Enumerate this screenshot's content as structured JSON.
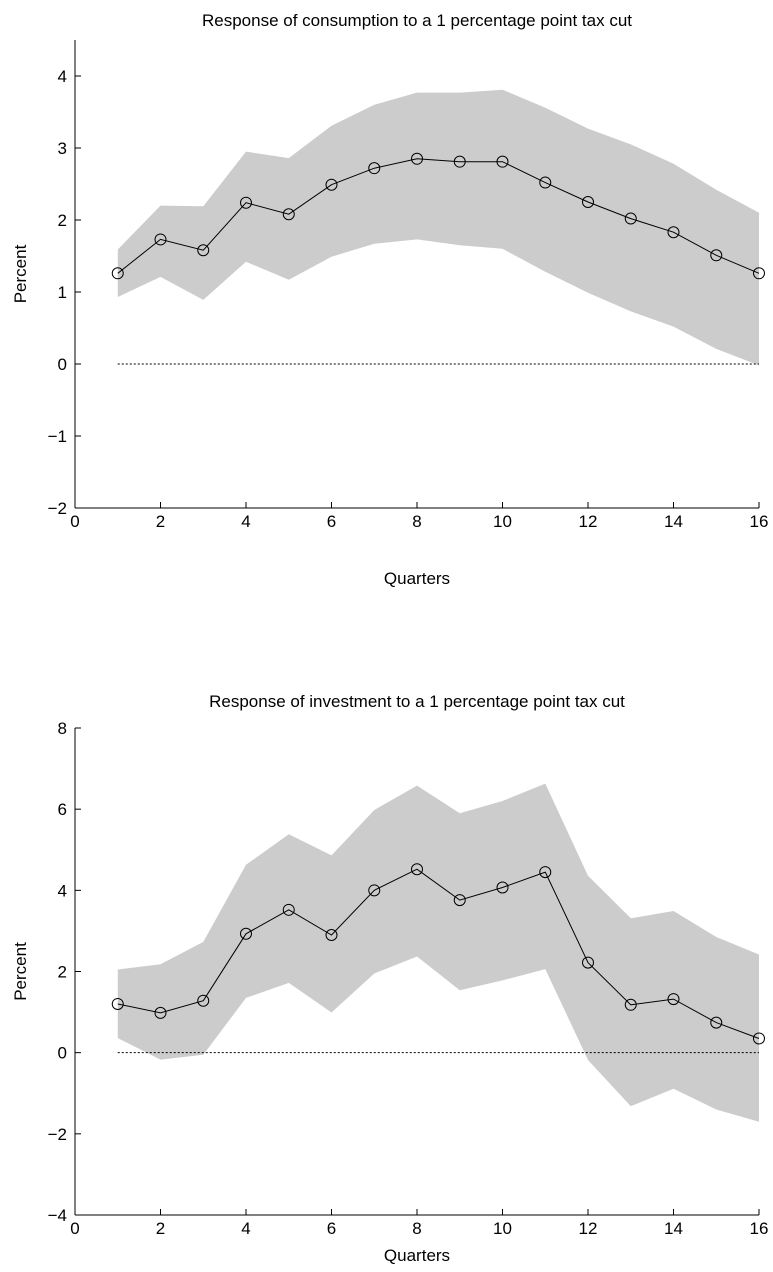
{
  "chart_data": [
    {
      "type": "line",
      "title": "Response of consumption to a 1 percentage point tax cut",
      "xlabel": "Quarters",
      "ylabel": "Percent",
      "xlim": [
        0,
        16
      ],
      "ylim": [
        -2,
        4.5
      ],
      "xticks": [
        0,
        2,
        4,
        6,
        8,
        10,
        12,
        14,
        16
      ],
      "yticks": [
        -2,
        -1,
        0,
        1,
        2,
        3,
        4
      ],
      "grid": false,
      "x": [
        1,
        2,
        3,
        4,
        5,
        6,
        7,
        8,
        9,
        10,
        11,
        12,
        13,
        14,
        15,
        16
      ],
      "series": [
        {
          "values": [
            1.26,
            1.73,
            1.58,
            2.24,
            2.08,
            2.49,
            2.72,
            2.85,
            2.81,
            2.81,
            2.52,
            2.25,
            2.02,
            1.83,
            1.51,
            1.26
          ]
        }
      ],
      "band_upper": [
        1.59,
        2.2,
        2.19,
        2.95,
        2.86,
        3.31,
        3.6,
        3.77,
        3.77,
        3.81,
        3.56,
        3.27,
        3.05,
        2.78,
        2.42,
        2.1
      ],
      "band_lower": [
        0.93,
        1.21,
        0.89,
        1.42,
        1.17,
        1.49,
        1.67,
        1.73,
        1.65,
        1.6,
        1.28,
        0.99,
        0.73,
        0.52,
        0.21,
        -0.02
      ],
      "zero_line": 0
    },
    {
      "type": "line",
      "title": "Response of investment to a 1 percentage point tax cut",
      "xlabel": "Quarters",
      "ylabel": "Percent",
      "xlim": [
        0,
        16
      ],
      "ylim": [
        -4,
        8
      ],
      "xticks": [
        0,
        2,
        4,
        6,
        8,
        10,
        12,
        14,
        16
      ],
      "yticks": [
        -4,
        -2,
        0,
        2,
        4,
        6,
        8
      ],
      "grid": false,
      "x": [
        1,
        2,
        3,
        4,
        5,
        6,
        7,
        8,
        9,
        10,
        11,
        12,
        13,
        14,
        15,
        16
      ],
      "series": [
        {
          "values": [
            1.2,
            0.98,
            1.28,
            2.93,
            3.52,
            2.9,
            4.0,
            4.52,
            3.76,
            4.07,
            4.45,
            2.22,
            1.18,
            1.32,
            0.74,
            0.35
          ]
        }
      ],
      "band_upper": [
        2.05,
        2.18,
        2.73,
        4.63,
        5.38,
        4.86,
        5.98,
        6.58,
        5.9,
        6.2,
        6.63,
        4.36,
        3.31,
        3.49,
        2.85,
        2.42
      ],
      "band_lower": [
        0.36,
        -0.17,
        -0.05,
        1.35,
        1.72,
        0.99,
        1.95,
        2.37,
        1.54,
        1.78,
        2.06,
        -0.18,
        -1.32,
        -0.89,
        -1.4,
        -1.7
      ],
      "zero_line": 0
    }
  ]
}
